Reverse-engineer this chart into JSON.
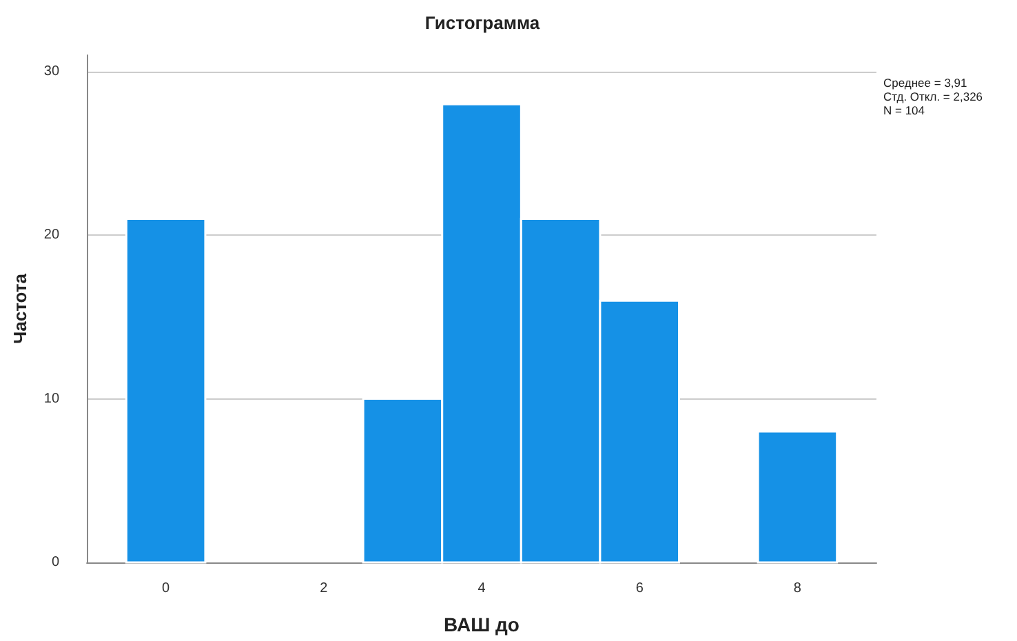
{
  "chart_data": {
    "type": "histogram",
    "title": "Гистограмма",
    "xlabel": "ВАШ до",
    "ylabel": "Частота",
    "bins": [
      -0.5,
      0.5,
      1.5,
      2.5,
      3.5,
      4.5,
      5.5,
      6.5,
      7.5,
      8.5
    ],
    "values": [
      21,
      0,
      0,
      10,
      28,
      21,
      16,
      0,
      8
    ],
    "color": "#1591e6",
    "xlim": [
      -1,
      9
    ],
    "xticks": [
      0,
      2,
      4,
      6,
      8
    ],
    "ylim": [
      0,
      31
    ],
    "yticks": [
      0,
      10,
      20,
      30
    ],
    "grid": "y",
    "annotations": [
      "Среднее = 3,91",
      "Стд. Откл. = 2,326",
      "N = 104"
    ]
  }
}
